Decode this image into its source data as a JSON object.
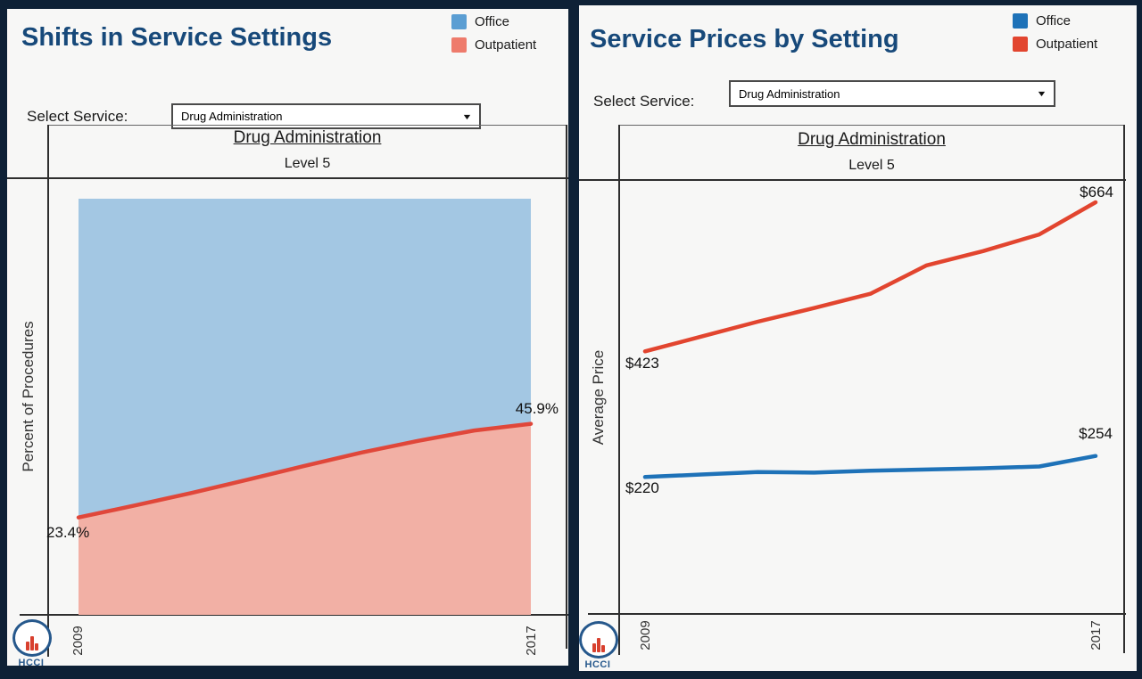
{
  "left_panel": {
    "title": "Shifts in Service Settings",
    "legend": [
      {
        "label": "Office",
        "color": "#5b9ed3"
      },
      {
        "label": "Outpatient",
        "color": "#ee7b6c"
      }
    ],
    "select_label": "Select Service:",
    "service_dropdown": {
      "value": "Drug Administration",
      "caret": "▼"
    },
    "chart_title": "Drug Administration",
    "chart_subtitle": "Level 5",
    "ylabel": "Percent of Procedures",
    "first_point_label": "23.4%",
    "last_point_label": "45.9%",
    "x_ticks": [
      "2009",
      "2017"
    ],
    "logo_text": "HCCI"
  },
  "right_panel": {
    "title": "Service Prices by Setting",
    "legend": [
      {
        "label": "Office",
        "color": "#1e72b8"
      },
      {
        "label": "Outpatient",
        "color": "#e2452f"
      }
    ],
    "select_label": "Select Service:",
    "service_dropdown": {
      "value": "Drug Administration",
      "caret": "▼"
    },
    "chart_title": "Drug Administration",
    "chart_subtitle": "Level 5",
    "ylabel": "Average Price",
    "office_first_label": "$220",
    "office_last_label": "$254",
    "outpatient_first_label": "$423",
    "outpatient_last_label": "$664",
    "x_ticks": [
      "2009",
      "2017"
    ],
    "logo_text": "HCCI"
  },
  "chart_data": [
    {
      "type": "area",
      "title": "Drug Administration",
      "subtitle": "Level 5",
      "ylabel": "Percent of Procedures",
      "ylim": [
        0,
        100
      ],
      "stacked_total": 100,
      "x": [
        2009,
        2010,
        2011,
        2012,
        2013,
        2014,
        2015,
        2016,
        2017
      ],
      "x_tick_labels": [
        "2009",
        "2017"
      ],
      "series": [
        {
          "name": "Office",
          "fill": "#a3c7e3",
          "values": [
            76.6,
            73.7,
            70.7,
            67.5,
            64.2,
            61.0,
            58.2,
            55.7,
            54.1
          ]
        },
        {
          "name": "Outpatient",
          "fill": "#f2b0a5",
          "line_color": "#e0473a",
          "values": [
            23.4,
            26.3,
            29.3,
            32.5,
            35.8,
            39.0,
            41.8,
            44.3,
            45.9
          ]
        }
      ],
      "point_labels": {
        "outpatient_first": "23.4%",
        "outpatient_last": "45.9%"
      },
      "legend_position": "top-right",
      "grid": false
    },
    {
      "type": "line",
      "title": "Drug Administration",
      "subtitle": "Level 5",
      "ylabel": "Average Price",
      "ylim": [
        0,
        700
      ],
      "x": [
        2009,
        2010,
        2011,
        2012,
        2013,
        2014,
        2015,
        2016,
        2017
      ],
      "x_tick_labels": [
        "2009",
        "2017"
      ],
      "series": [
        {
          "name": "Office",
          "color": "#1e72b8",
          "values": [
            220,
            224,
            228,
            227,
            230,
            232,
            234,
            237,
            254
          ],
          "first_label": "$220",
          "last_label": "$254"
        },
        {
          "name": "Outpatient",
          "color": "#e2452f",
          "values": [
            423,
            447,
            471,
            493,
            516,
            562,
            585,
            612,
            664
          ],
          "first_label": "$423",
          "last_label": "$664"
        }
      ],
      "legend_position": "top-right",
      "grid": false
    }
  ]
}
